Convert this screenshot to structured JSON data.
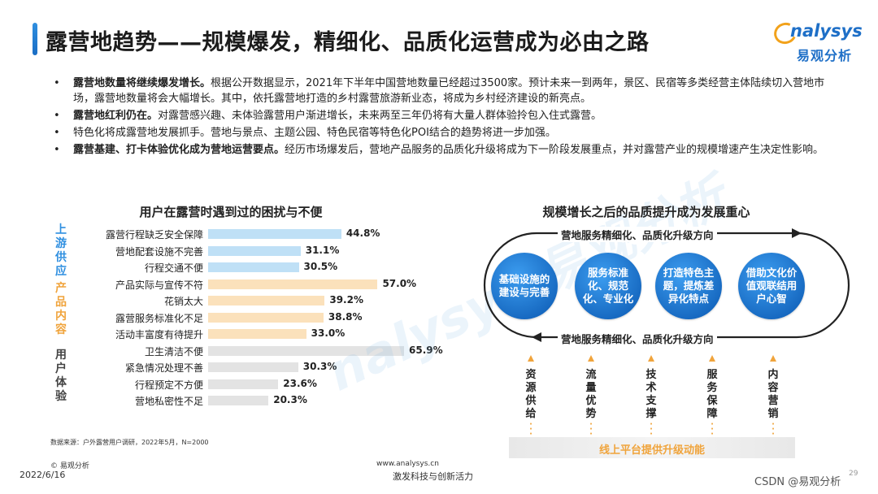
{
  "header": {
    "title": "露营地趋势——规模爆发，精细化、品质化运营成为必由之路",
    "logo_word": "nalysys",
    "logo_cn": "易观分析"
  },
  "bullets": [
    {
      "bold": "露营地数量将继续爆发增长。",
      "text": "根据公开数据显示，2021年下半年中国营地数量已经超过3500家。预计未来一到两年，景区、民宿等多类经营主体陆续切入营地市场，露营地数量将会大幅增长。其中，依托露营地打造的乡村露营旅游新业态，将成为乡村经济建设的新亮点。"
    },
    {
      "bold": "露营地红利仍在。",
      "text": "对露营感兴趣、未体验露营用户渐进增长，未来两至三年仍将有大量人群体验拎包入住式露营。"
    },
    {
      "bold": "",
      "text": "特色化将成露营地发展抓手。营地与景点、主题公园、特色民宿等特色化POI结合的趋势将进一步加强。"
    },
    {
      "bold": "露营基建、打卡体验优化成为营地运营要点。",
      "text": "经历市场爆发后，营地产品服务的品质化升级将成为下一阶段发展重点，并对露营产业的规模增速产生决定性影响。"
    }
  ],
  "bullet_symbol": "•",
  "chart_data": {
    "type": "bar",
    "orientation": "horizontal",
    "title": "用户在露营时遇到过的困扰与不便",
    "unit": "%",
    "xlim": [
      0,
      70
    ],
    "groups": [
      {
        "name": "上游供应",
        "color": "#2f8fe0",
        "bar_color": "#bfe0f6",
        "items": [
          {
            "label": "露营行程缺乏安全保障",
            "value": 44.8,
            "display": "44.8%"
          },
          {
            "label": "营地配套设施不完善",
            "value": 31.1,
            "display": "31.1%"
          },
          {
            "label": "行程交通不便",
            "value": 30.5,
            "display": "30.5%"
          }
        ]
      },
      {
        "name": "产品内容",
        "color": "#f0a43c",
        "bar_color": "#fbe1bb",
        "items": [
          {
            "label": "产品实际与宣传不符",
            "value": 57.0,
            "display": "57.0%"
          },
          {
            "label": "花销太大",
            "value": 39.2,
            "display": "39.2%"
          },
          {
            "label": "露营服务标准化不足",
            "value": 38.8,
            "display": "38.8%"
          },
          {
            "label": "活动丰富度有待提升",
            "value": 33.0,
            "display": "33.0%"
          }
        ]
      },
      {
        "name": "用户体验",
        "color": "#444444",
        "bar_color": "#e3e3e3",
        "items": [
          {
            "label": "卫生清洁不便",
            "value": 65.9,
            "display": "65.9%"
          },
          {
            "label": "紧急情况处理不善",
            "value": 30.3,
            "display": "30.3%"
          },
          {
            "label": "行程预定不方便",
            "value": 23.6,
            "display": "23.6%"
          },
          {
            "label": "营地私密性不足",
            "value": 20.3,
            "display": "20.3%"
          }
        ]
      }
    ]
  },
  "source": "数据来源：户外露营用户调研，2022年5月，N=2000",
  "diagram": {
    "title": "规模增长之后的品质提升成为发展重心",
    "top_caption": "营地服务精细化、品质化升级方向",
    "bottom_caption": "营地服务精细化、品质化升级方向",
    "circles": [
      "基础设施的建设与完善",
      "服务标准化、规范化、专业化",
      "打造特色主题，提炼差异化特点",
      "借助文化价值观联结用户心智"
    ],
    "drivers": [
      "资源供给",
      "流量优势",
      "技术支撑",
      "服务保障",
      "内容营销"
    ],
    "platform": "线上平台提供升级动能",
    "accent": "#f0a43c",
    "loop_color": "#222222"
  },
  "footer": {
    "copyright": "© 易观分析",
    "date": "2022/6/16",
    "url": "www.analysys.cn",
    "slogan": "激发科技与创新活力",
    "credit": "CSDN @易观分析",
    "page": "29"
  },
  "watermark": "nalysys 易观分析"
}
